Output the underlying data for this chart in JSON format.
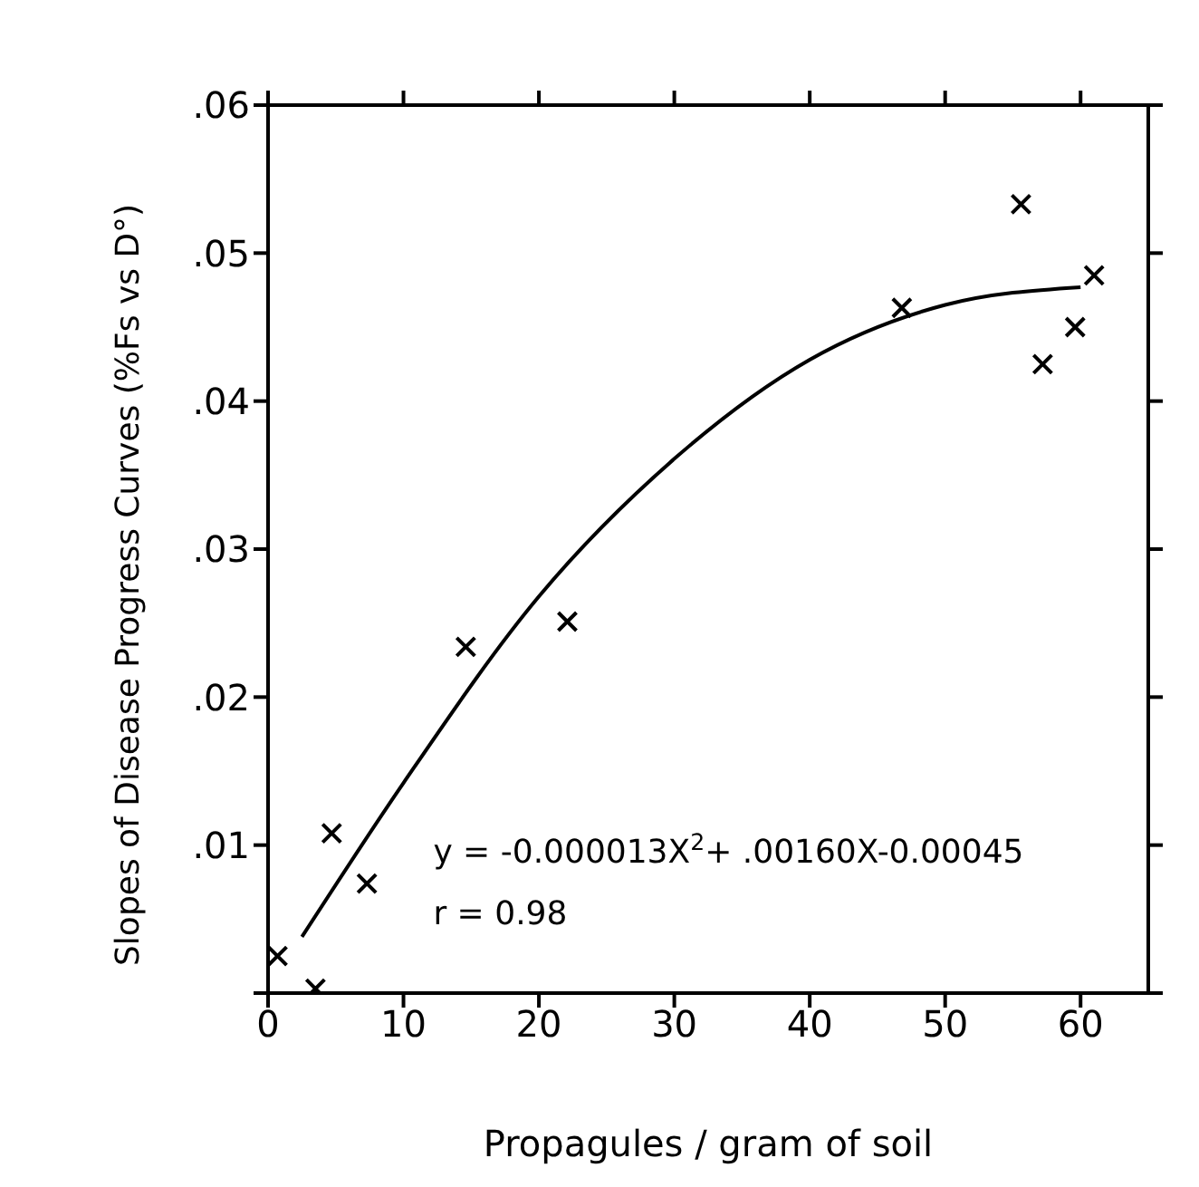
{
  "chart_data": {
    "type": "scatter",
    "xlabel": "Propagules / gram of soil",
    "ylabel": "Slopes of Disease Progress Curves (%Fs vs D°)",
    "xlim": [
      0,
      65
    ],
    "xticks": [
      0,
      10,
      20,
      30,
      40,
      50,
      60
    ],
    "ylim": [
      0,
      0.06
    ],
    "yticks": [
      {
        "value": 0,
        "label": null
      },
      {
        "value": 0.01,
        "label": ".01"
      },
      {
        "value": 0.02,
        "label": ".02"
      },
      {
        "value": 0.03,
        "label": ".03"
      },
      {
        "value": 0.04,
        "label": ".04"
      },
      {
        "value": 0.05,
        "label": ".05"
      },
      {
        "value": 0.06,
        "label": ".06"
      }
    ],
    "grid": false,
    "legend": false,
    "series": [
      {
        "color": "#000000",
        "marker": "cross",
        "x": [
          0.7,
          3.5,
          4.7,
          7.3,
          14.6,
          22.1,
          46.8,
          55.6,
          57.2,
          59.6,
          61.0
        ],
        "values": [
          0.0025,
          0.0003,
          0.0108,
          0.0074,
          0.0234,
          0.0251,
          0.0463,
          0.0533,
          0.0425,
          0.045,
          0.0485
        ]
      },
      {
        "type": "line",
        "color": "#000000",
        "marker": "none",
        "line_style": "solid",
        "x": [
          2.5,
          10,
          20,
          30,
          40,
          50,
          60
        ],
        "values": [
          0.0038,
          0.0142,
          0.0268,
          0.0361,
          0.0428,
          0.0465,
          0.0477
        ]
      }
    ],
    "annotations": [
      {
        "text": "y = -0.000013X$^{2}$+ .00160X-0.00045"
      },
      {
        "text": "r = 0.98"
      }
    ]
  }
}
